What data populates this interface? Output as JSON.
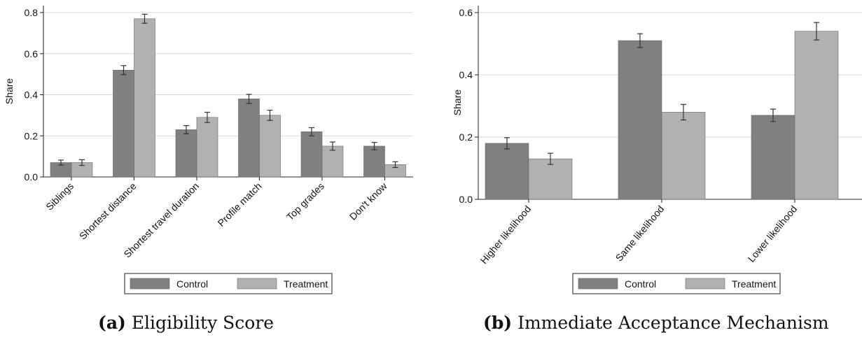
{
  "colors": {
    "control": "#808080",
    "treatment": "#b1b1b1",
    "grid": "#d9d9d9",
    "axis": "#222222",
    "errorbar": "#333333"
  },
  "chart_data": [
    {
      "type": "bar",
      "panel": "a",
      "caption_letter": "(a)",
      "caption_text": "Eligibility Score",
      "ylabel": "Share",
      "xlabel": "",
      "ylim": [
        0,
        0.8
      ],
      "yticks": [
        "0.0",
        "0.2",
        "0.4",
        "0.6",
        "0.8"
      ],
      "ytick_values": [
        0,
        0.2,
        0.4,
        0.6,
        0.8
      ],
      "grid": true,
      "legend_position": "bottom",
      "categories": [
        "Siblings",
        "Shortest distance",
        "Shortest travel duration",
        "Profile match",
        "Top grades",
        "Don't know"
      ],
      "series": [
        {
          "name": "Control",
          "values": [
            0.07,
            0.52,
            0.23,
            0.38,
            0.22,
            0.15
          ],
          "err": [
            0.012,
            0.022,
            0.02,
            0.022,
            0.02,
            0.018
          ]
        },
        {
          "name": "Treatment",
          "values": [
            0.07,
            0.77,
            0.29,
            0.3,
            0.15,
            0.06
          ],
          "err": [
            0.014,
            0.022,
            0.025,
            0.025,
            0.02,
            0.014
          ]
        }
      ]
    },
    {
      "type": "bar",
      "panel": "b",
      "caption_letter": "(b)",
      "caption_text": "Immediate Acceptance Mechanism",
      "ylabel": "Share",
      "xlabel": "",
      "ylim": [
        0,
        0.6
      ],
      "yticks": [
        "0.0",
        "0.2",
        "0.4",
        "0.6"
      ],
      "ytick_values": [
        0,
        0.2,
        0.4,
        0.6
      ],
      "grid": true,
      "legend_position": "bottom",
      "categories": [
        "Higher likelihood",
        "Same likelihood",
        "Lower likelihood"
      ],
      "series": [
        {
          "name": "Control",
          "values": [
            0.18,
            0.51,
            0.27
          ],
          "err": [
            0.018,
            0.022,
            0.02
          ]
        },
        {
          "name": "Treatment",
          "values": [
            0.13,
            0.28,
            0.54
          ],
          "err": [
            0.018,
            0.025,
            0.028
          ]
        }
      ]
    }
  ]
}
